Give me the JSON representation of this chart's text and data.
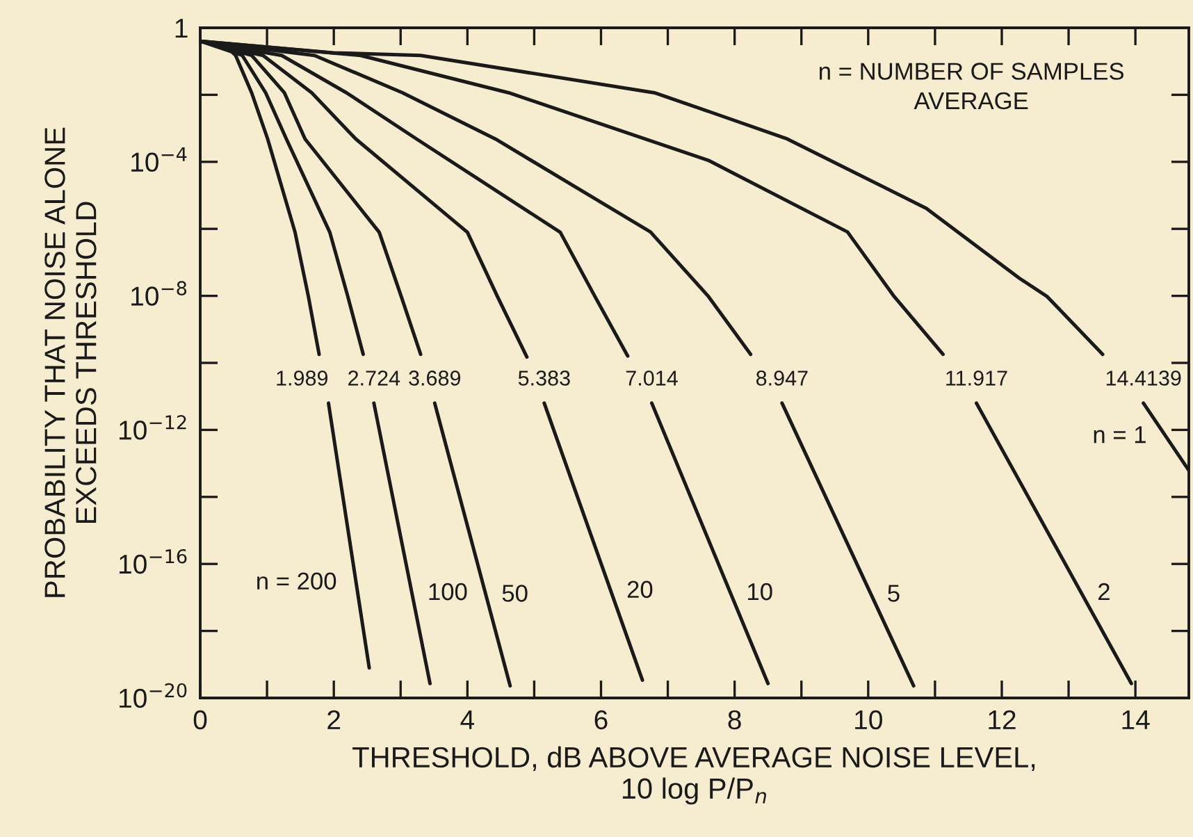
{
  "chart_data": {
    "type": "line",
    "xlabel": "THRESHOLD, dB ABOVE AVERAGE NOISE LEVEL,\n10 log P/P$_{n}$",
    "ylabel": "PROBABILITY THAT NOISE ALONE\nEXCEEDS THRESHOLD",
    "xlim": [
      0,
      14.8
    ],
    "ylim": [
      1e-20,
      1
    ],
    "log": "y",
    "grid": false,
    "marker": "none",
    "line_style": "solid",
    "xticks": [
      0,
      {
        "value": 1,
        "label": null
      },
      2,
      {
        "value": 3,
        "label": null
      },
      4,
      {
        "value": 5,
        "label": null
      },
      6,
      {
        "value": 7,
        "label": null
      },
      8,
      {
        "value": 9,
        "label": null
      },
      10,
      {
        "value": 11,
        "label": null
      },
      12,
      {
        "value": 13,
        "label": null
      },
      14
    ],
    "yticks": [
      {
        "value": 1e-20,
        "label": "10$^{−20}$"
      },
      {
        "value": 1e-18,
        "label": null
      },
      {
        "value": 1e-16,
        "label": "10$^{−16}$"
      },
      {
        "value": 1e-14,
        "label": null
      },
      {
        "value": 1e-12,
        "label": "10$^{−12}$"
      },
      {
        "value": 1e-10,
        "label": null
      },
      {
        "value": 1e-08,
        "label": "10$^{−8}$"
      },
      {
        "value": 1e-06,
        "label": null
      },
      {
        "value": 0.0001,
        "label": "10$^{−4}$"
      },
      {
        "value": 0.01,
        "label": null
      },
      {
        "value": 1,
        "label": "1"
      }
    ],
    "series": [
      {
        "color": "#1a1a1a",
        "x": [
          0,
          0.38,
          0.53,
          0.77,
          1.01,
          1.42,
          1.62,
          1.78
        ],
        "values": [
          0.4,
          0.29,
          0.15,
          0.0115,
          0.00048,
          7.9e-07,
          9.5e-09,
          1.8e-10
        ]
      },
      {
        "name": "n = 200",
        "color": "#1a1a1a",
        "x": [
          1.92,
          2.53
        ],
        "values": [
          6.3e-12,
          7.9e-20
        ]
      },
      {
        "color": "#1a1a1a",
        "x": [
          0,
          0.63,
          0.98,
          1.29,
          1.94,
          2.21,
          2.44
        ],
        "values": [
          0.4,
          0.15,
          0.0115,
          0.00048,
          7.9e-07,
          9.5e-09,
          1.8e-10
        ]
      },
      {
        "name": "100",
        "color": "#1a1a1a",
        "x": [
          2.6,
          3.44
        ],
        "values": [
          6.3e-12,
          2.7e-20
        ]
      },
      {
        "color": "#1a1a1a",
        "x": [
          0,
          0.77,
          1.26,
          1.57,
          2.68,
          3.01,
          3.3
        ],
        "values": [
          0.4,
          0.15,
          0.0115,
          0.00048,
          7.9e-07,
          9.5e-09,
          1.8e-10
        ]
      },
      {
        "name": "50",
        "color": "#1a1a1a",
        "x": [
          3.51,
          4.64
        ],
        "values": [
          6.3e-12,
          2.3e-20
        ]
      },
      {
        "color": "#1a1a1a",
        "x": [
          0,
          0.94,
          1.67,
          2.33,
          4.0,
          4.45,
          4.89
        ],
        "values": [
          0.4,
          0.15,
          0.0115,
          0.00048,
          7.9e-07,
          9.5e-09,
          1.5e-10
        ]
      },
      {
        "name": "20",
        "color": "#1a1a1a",
        "x": [
          5.15,
          6.62
        ],
        "values": [
          6.3e-12,
          3.4e-20
        ]
      },
      {
        "color": "#1a1a1a",
        "x": [
          0,
          1.22,
          2.19,
          3.24,
          5.39,
          5.91,
          6.4
        ],
        "values": [
          0.4,
          0.15,
          0.0115,
          0.00048,
          7.9e-07,
          9.5e-09,
          1.6e-10
        ]
      },
      {
        "name": "10",
        "color": "#1a1a1a",
        "x": [
          6.76,
          8.5
        ],
        "values": [
          6.3e-12,
          2.7e-20
        ]
      },
      {
        "color": "#1a1a1a",
        "x": [
          0,
          1.71,
          3.03,
          4.42,
          6.74,
          7.61,
          8.24
        ],
        "values": [
          0.4,
          0.15,
          0.0115,
          0.00048,
          8.1e-07,
          9.5e-09,
          1.8e-10
        ]
      },
      {
        "name": "5",
        "color": "#1a1a1a",
        "x": [
          8.71,
          10.68
        ],
        "values": [
          6.3e-12,
          2.3e-20
        ]
      },
      {
        "color": "#1a1a1a",
        "x": [
          0,
          2.4,
          4.62,
          7.61,
          9.69,
          10.39,
          11.12
        ],
        "values": [
          0.4,
          0.15,
          0.0115,
          0.00011,
          8.1e-07,
          9.5e-09,
          1.8e-10
        ]
      },
      {
        "name": "2",
        "color": "#1a1a1a",
        "x": [
          11.62,
          13.94
        ],
        "values": [
          6.3e-12,
          2.7e-20
        ]
      },
      {
        "color": "#1a1a1a",
        "x": [
          0,
          1.99,
          3.3,
          6.8,
          7.61,
          8.79,
          10.87,
          12.26,
          12.68,
          13.51
        ],
        "values": [
          0.4,
          0.18,
          0.15,
          0.0115,
          0.0032,
          0.00048,
          4.1e-06,
          3.4e-08,
          9.5e-09,
          1.8e-10
        ]
      },
      {
        "name": "n = 1",
        "color": "#1a1a1a",
        "x": [
          14.12,
          14.8
        ],
        "values": [
          6.3e-12,
          6.2e-14
        ]
      }
    ],
    "annotations": [
      "n = NUMBER OF SAMPLES\nAVERAGE",
      "1.989",
      "2.724",
      "3.689",
      "5.383",
      "7.014",
      "8.947",
      "11.917",
      "14.4139"
    ]
  }
}
